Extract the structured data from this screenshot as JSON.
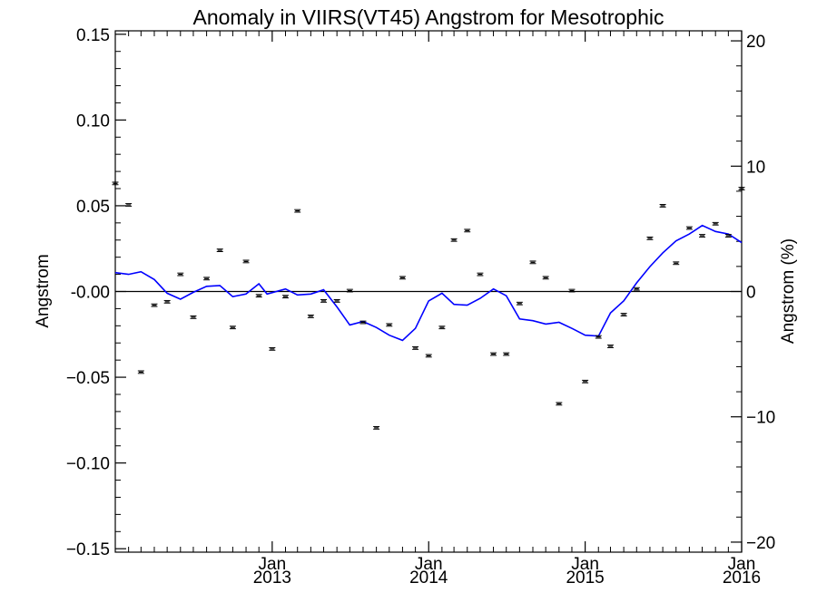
{
  "chart_data": {
    "type": "line",
    "title": "Anomaly in VIIRS(VT45) Angstrom for Mesotrophic",
    "ylabel": "Angstrom",
    "ylabel_right": "Angstrom (%)",
    "xlim": [
      "2012-01-01",
      "2016-01-01"
    ],
    "ylim": [
      -0.152,
      0.152
    ],
    "ylim_right": [
      -20.8,
      20.8
    ],
    "y_ticks": [
      0.15,
      0.1,
      0.05,
      0.0,
      -0.05,
      -0.1,
      -0.15
    ],
    "y_tick_labels": [
      "0.15",
      "0.10",
      "0.05",
      "-0.00",
      "−0.05",
      "−0.10",
      "−0.15"
    ],
    "y_right_ticks": [
      20,
      10,
      0,
      -10,
      -20
    ],
    "y_right_tick_labels": [
      "20",
      "10",
      "0",
      "−10",
      "−20"
    ],
    "x_ticks": [
      "2013-01-01",
      "2014-01-01",
      "2015-01-01",
      "2016-01-01"
    ],
    "x_tick_labels": [
      {
        "month": "Jan",
        "year": "2013"
      },
      {
        "month": "Jan",
        "year": "2014"
      },
      {
        "month": "Jan",
        "year": "2015"
      },
      {
        "month": "Jan",
        "year": "2016"
      }
    ],
    "zero_line": 0,
    "series": [
      {
        "type": "line",
        "color": "#0000ff",
        "points": [
          [
            "2012-01-01",
            0.011
          ],
          [
            "2012-02-01",
            0.01
          ],
          [
            "2012-03-01",
            0.0115
          ],
          [
            "2012-04-01",
            0.007
          ],
          [
            "2012-05-01",
            -0.001
          ],
          [
            "2012-06-01",
            -0.0045
          ],
          [
            "2012-07-01",
            -0.0005
          ],
          [
            "2012-08-01",
            0.003
          ],
          [
            "2012-09-01",
            0.0035
          ],
          [
            "2012-10-01",
            -0.003
          ],
          [
            "2012-11-01",
            -0.0015
          ],
          [
            "2012-12-01",
            0.0045
          ],
          [
            "2012-12-20",
            -0.0015
          ],
          [
            "2013-02-01",
            0.0015
          ],
          [
            "2013-03-01",
            -0.002
          ],
          [
            "2013-04-01",
            -0.0015
          ],
          [
            "2013-05-01",
            0.001
          ],
          [
            "2013-06-01",
            -0.009
          ],
          [
            "2013-07-01",
            -0.0195
          ],
          [
            "2013-08-01",
            -0.0175
          ],
          [
            "2013-09-01",
            -0.021
          ],
          [
            "2013-10-01",
            -0.0255
          ],
          [
            "2013-11-01",
            -0.0285
          ],
          [
            "2013-12-01",
            -0.0215
          ],
          [
            "2014-01-01",
            -0.0055
          ],
          [
            "2014-02-01",
            -0.001
          ],
          [
            "2014-03-01",
            -0.0075
          ],
          [
            "2014-04-01",
            -0.008
          ],
          [
            "2014-05-01",
            -0.004
          ],
          [
            "2014-06-01",
            0.0015
          ],
          [
            "2014-07-01",
            -0.0025
          ],
          [
            "2014-08-01",
            -0.016
          ],
          [
            "2014-09-01",
            -0.017
          ],
          [
            "2014-10-01",
            -0.019
          ],
          [
            "2014-11-01",
            -0.018
          ],
          [
            "2014-12-01",
            -0.0215
          ],
          [
            "2015-01-01",
            -0.0255
          ],
          [
            "2015-02-01",
            -0.026
          ],
          [
            "2015-03-01",
            -0.0125
          ],
          [
            "2015-04-01",
            -0.0055
          ],
          [
            "2015-05-01",
            0.005
          ],
          [
            "2015-06-01",
            0.0145
          ],
          [
            "2015-07-01",
            0.0225
          ],
          [
            "2015-08-01",
            0.0295
          ],
          [
            "2015-09-01",
            0.0335
          ],
          [
            "2015-10-01",
            0.0385
          ],
          [
            "2015-11-01",
            0.035
          ],
          [
            "2015-12-01",
            0.0335
          ],
          [
            "2016-01-01",
            0.0285
          ]
        ]
      },
      {
        "type": "errorbar-points",
        "color": "#000000",
        "points": [
          [
            "2012-01-01",
            0.063
          ],
          [
            "2012-02-01",
            0.0505
          ],
          [
            "2012-03-01",
            -0.047
          ],
          [
            "2012-04-01",
            -0.008
          ],
          [
            "2012-05-01",
            -0.006
          ],
          [
            "2012-06-01",
            0.01
          ],
          [
            "2012-07-01",
            -0.015
          ],
          [
            "2012-08-01",
            0.0075
          ],
          [
            "2012-09-01",
            0.024
          ],
          [
            "2012-10-01",
            -0.021
          ],
          [
            "2012-11-01",
            0.0175
          ],
          [
            "2012-12-01",
            -0.0025
          ],
          [
            "2013-01-01",
            -0.0335
          ],
          [
            "2013-02-01",
            -0.003
          ],
          [
            "2013-03-01",
            0.047
          ],
          [
            "2013-04-01",
            -0.0145
          ],
          [
            "2013-05-01",
            -0.0055
          ],
          [
            "2013-06-01",
            -0.0055
          ],
          [
            "2013-07-01",
            0.0005
          ],
          [
            "2013-08-01",
            -0.018
          ],
          [
            "2013-09-01",
            -0.0795
          ],
          [
            "2013-10-01",
            -0.0195
          ],
          [
            "2013-11-01",
            0.008
          ],
          [
            "2013-12-01",
            -0.033
          ],
          [
            "2014-01-01",
            -0.0375
          ],
          [
            "2014-02-01",
            -0.021
          ],
          [
            "2014-03-01",
            0.03
          ],
          [
            "2014-04-01",
            0.0355
          ],
          [
            "2014-05-01",
            0.01
          ],
          [
            "2014-06-01",
            -0.0365
          ],
          [
            "2014-07-01",
            -0.0365
          ],
          [
            "2014-08-01",
            -0.007
          ],
          [
            "2014-09-01",
            0.017
          ],
          [
            "2014-10-01",
            0.008
          ],
          [
            "2014-11-01",
            -0.0655
          ],
          [
            "2014-12-01",
            0.0005
          ],
          [
            "2015-01-01",
            -0.0525
          ],
          [
            "2015-02-01",
            -0.0265
          ],
          [
            "2015-03-01",
            -0.032
          ],
          [
            "2015-04-01",
            -0.0135
          ],
          [
            "2015-05-01",
            0.0015
          ],
          [
            "2015-06-01",
            0.031
          ],
          [
            "2015-07-01",
            0.05
          ],
          [
            "2015-08-01",
            0.0165
          ],
          [
            "2015-09-01",
            0.037
          ],
          [
            "2015-10-01",
            0.0325
          ],
          [
            "2015-11-01",
            0.0395
          ],
          [
            "2015-12-01",
            0.0325
          ],
          [
            "2016-01-01",
            0.06
          ]
        ]
      }
    ]
  }
}
